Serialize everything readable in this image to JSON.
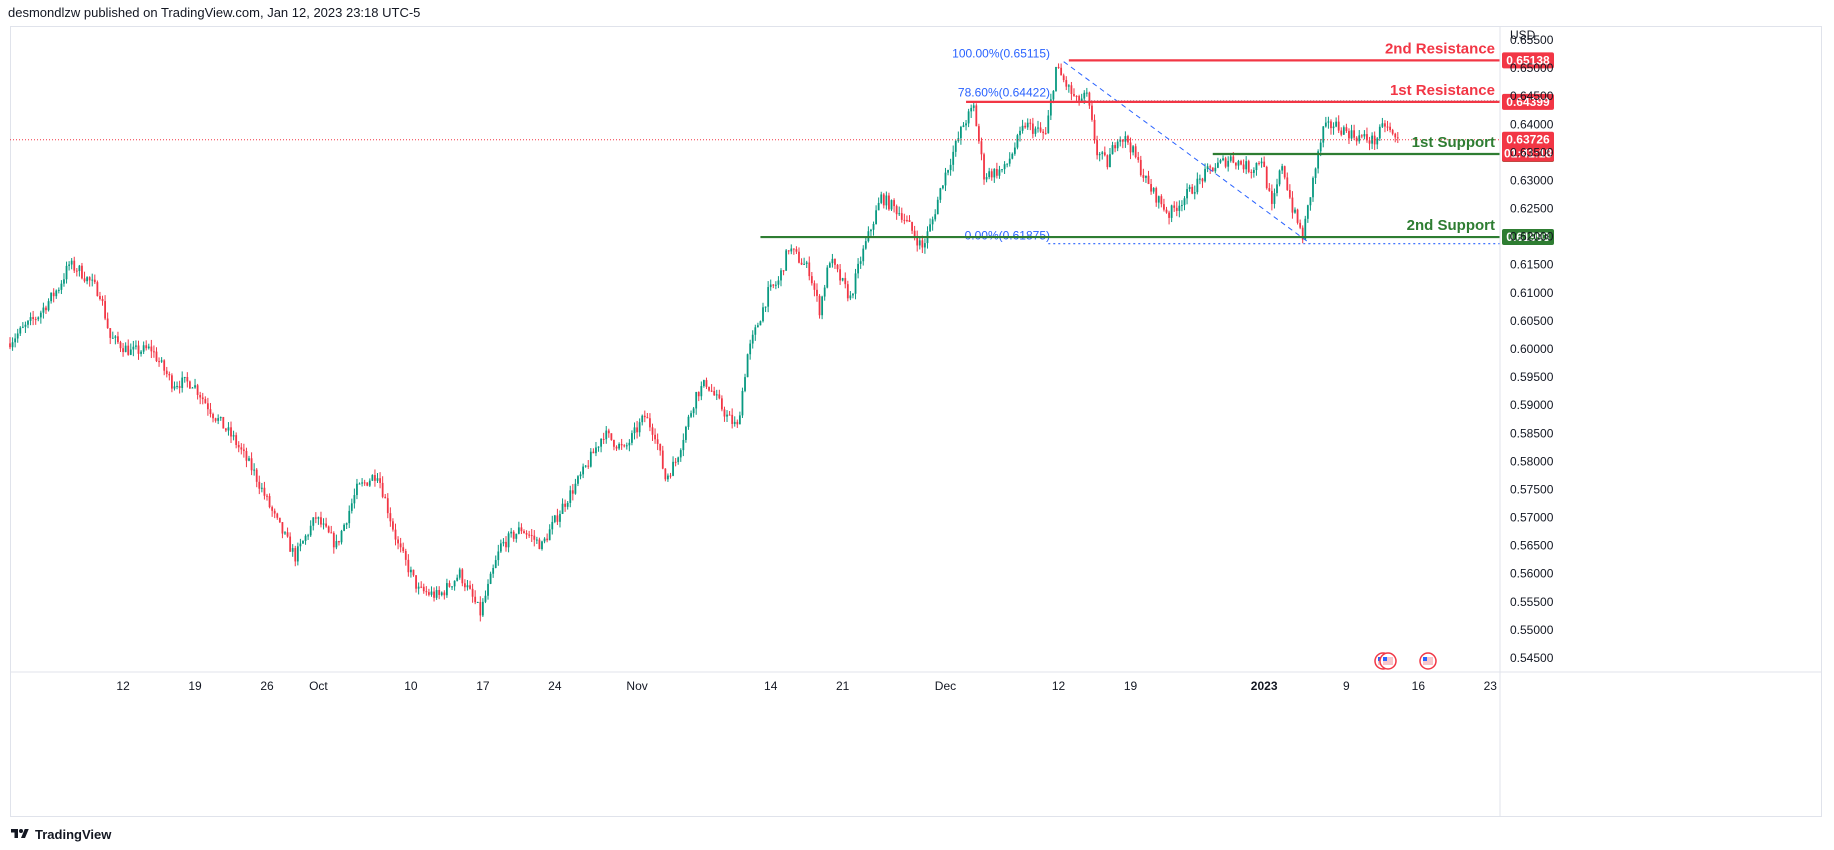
{
  "header": {
    "publisher": "desmondlzw published on TradingView.com, Jan 12, 2023 23:18 UTC-5"
  },
  "footer": {
    "brand": "TradingView"
  },
  "colors": {
    "up": "#089981",
    "down": "#f23645",
    "resistance": "#f23645",
    "support": "#2e7d32",
    "fib": "#2962ff",
    "current": "#f23645"
  },
  "chart_data": {
    "type": "candlestick",
    "currency": "USD",
    "ylim": [
      0.5425,
      0.6575
    ],
    "y_ticks": [
      "0.65500",
      "0.65000",
      "0.64500",
      "0.64000",
      "0.63500",
      "0.63000",
      "0.62500",
      "0.62000",
      "0.61500",
      "0.61000",
      "0.60500",
      "0.60000",
      "0.59500",
      "0.59000",
      "0.58500",
      "0.58000",
      "0.57500",
      "0.57000",
      "0.56500",
      "0.56000",
      "0.55500",
      "0.55000",
      "0.54500"
    ],
    "x_ticks": [
      {
        "label": "12",
        "day": 11
      },
      {
        "label": "19",
        "day": 18
      },
      {
        "label": "26",
        "day": 25
      },
      {
        "label": "Oct",
        "day": 30
      },
      {
        "label": "10",
        "day": 39
      },
      {
        "label": "17",
        "day": 46
      },
      {
        "label": "24",
        "day": 53
      },
      {
        "label": "Nov",
        "day": 61
      },
      {
        "label": "14",
        "day": 74
      },
      {
        "label": "21",
        "day": 81
      },
      {
        "label": "Dec",
        "day": 91
      },
      {
        "label": "12",
        "day": 102
      },
      {
        "label": "19",
        "day": 109
      },
      {
        "label": "2023",
        "day": 122
      },
      {
        "label": "9",
        "day": 130
      },
      {
        "label": "16",
        "day": 137
      },
      {
        "label": "23",
        "day": 144
      }
    ],
    "levels": [
      {
        "name": "2nd Resistance",
        "value": 0.65138,
        "label": "0.65138",
        "kind": "resistance",
        "from_day": 103
      },
      {
        "name": "1st Resistance",
        "value": 0.64399,
        "label": "0.64399",
        "kind": "resistance",
        "from_day": 93
      },
      {
        "name": "1st Support",
        "value": 0.63471,
        "label": "0.63471",
        "kind": "support",
        "from_day": 117
      },
      {
        "name": "2nd Support",
        "value": 0.61993,
        "label": "0.61993",
        "kind": "support",
        "from_day": 73
      }
    ],
    "fibonacci": [
      {
        "label": "100.00%(0.65115)",
        "value": 0.65115
      },
      {
        "label": "78.60%(0.64422)",
        "value": 0.64422
      },
      {
        "label": "0.00%(0.61875)",
        "value": 0.61875
      }
    ],
    "current_price": {
      "value": 0.63726,
      "label": "0.63726",
      "countdown": "01:41:18"
    },
    "anchors": [
      {
        "day": 0,
        "price": 0.601
      },
      {
        "day": 3,
        "price": 0.606
      },
      {
        "day": 5,
        "price": 0.611
      },
      {
        "day": 6,
        "price": 0.615
      },
      {
        "day": 7,
        "price": 0.614
      },
      {
        "day": 9,
        "price": 0.61
      },
      {
        "day": 10,
        "price": 0.602
      },
      {
        "day": 12,
        "price": 0.5995
      },
      {
        "day": 14,
        "price": 0.6
      },
      {
        "day": 16,
        "price": 0.594
      },
      {
        "day": 18,
        "price": 0.594
      },
      {
        "day": 20,
        "price": 0.5885
      },
      {
        "day": 22,
        "price": 0.584
      },
      {
        "day": 24,
        "price": 0.578
      },
      {
        "day": 26,
        "price": 0.57
      },
      {
        "day": 28,
        "price": 0.563
      },
      {
        "day": 30,
        "price": 0.57
      },
      {
        "day": 32,
        "price": 0.565
      },
      {
        "day": 34,
        "price": 0.575
      },
      {
        "day": 36,
        "price": 0.578
      },
      {
        "day": 38,
        "price": 0.565
      },
      {
        "day": 40,
        "price": 0.557
      },
      {
        "day": 42,
        "price": 0.556
      },
      {
        "day": 44,
        "price": 0.56
      },
      {
        "day": 46,
        "price": 0.553
      },
      {
        "day": 48,
        "price": 0.565
      },
      {
        "day": 50,
        "price": 0.568
      },
      {
        "day": 52,
        "price": 0.565
      },
      {
        "day": 54,
        "price": 0.572
      },
      {
        "day": 56,
        "price": 0.578
      },
      {
        "day": 58,
        "price": 0.585
      },
      {
        "day": 60,
        "price": 0.582
      },
      {
        "day": 62,
        "price": 0.588
      },
      {
        "day": 63,
        "price": 0.585
      },
      {
        "day": 64,
        "price": 0.577
      },
      {
        "day": 65,
        "price": 0.58
      },
      {
        "day": 67,
        "price": 0.592
      },
      {
        "day": 68,
        "price": 0.594
      },
      {
        "day": 70,
        "price": 0.588
      },
      {
        "day": 71,
        "price": 0.586
      },
      {
        "day": 72,
        "price": 0.599
      },
      {
        "day": 74,
        "price": 0.61
      },
      {
        "day": 75,
        "price": 0.612
      },
      {
        "day": 76,
        "price": 0.618
      },
      {
        "day": 78,
        "price": 0.614
      },
      {
        "day": 79,
        "price": 0.607
      },
      {
        "day": 80,
        "price": 0.616
      },
      {
        "day": 82,
        "price": 0.609
      },
      {
        "day": 83,
        "price": 0.616
      },
      {
        "day": 85,
        "price": 0.627
      },
      {
        "day": 87,
        "price": 0.624
      },
      {
        "day": 89,
        "price": 0.618
      },
      {
        "day": 90,
        "price": 0.623
      },
      {
        "day": 91,
        "price": 0.63
      },
      {
        "day": 93,
        "price": 0.64
      },
      {
        "day": 94,
        "price": 0.643
      },
      {
        "day": 95,
        "price": 0.631
      },
      {
        "day": 97,
        "price": 0.632
      },
      {
        "day": 99,
        "price": 0.64
      },
      {
        "day": 101,
        "price": 0.638
      },
      {
        "day": 102,
        "price": 0.65
      },
      {
        "day": 104,
        "price": 0.644
      },
      {
        "day": 105,
        "price": 0.645
      },
      {
        "day": 106,
        "price": 0.635
      },
      {
        "day": 107,
        "price": 0.633
      },
      {
        "day": 108,
        "price": 0.638
      },
      {
        "day": 109,
        "price": 0.637
      },
      {
        "day": 111,
        "price": 0.629
      },
      {
        "day": 113,
        "price": 0.624
      },
      {
        "day": 115,
        "price": 0.628
      },
      {
        "day": 117,
        "price": 0.632
      },
      {
        "day": 119,
        "price": 0.634
      },
      {
        "day": 121,
        "price": 0.632
      },
      {
        "day": 122,
        "price": 0.634
      },
      {
        "day": 123,
        "price": 0.625
      },
      {
        "day": 124,
        "price": 0.633
      },
      {
        "day": 125,
        "price": 0.625
      },
      {
        "day": 126,
        "price": 0.62
      },
      {
        "day": 127,
        "price": 0.63
      },
      {
        "day": 128,
        "price": 0.639
      },
      {
        "day": 129,
        "price": 0.64
      },
      {
        "day": 131,
        "price": 0.638
      },
      {
        "day": 133,
        "price": 0.637
      },
      {
        "day": 134,
        "price": 0.64
      },
      {
        "day": 135,
        "price": 0.6373
      }
    ]
  }
}
